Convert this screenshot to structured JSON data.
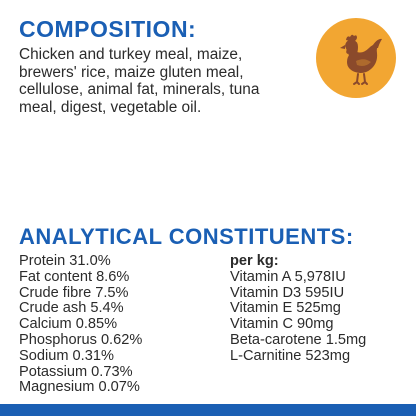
{
  "composition": {
    "title": "COMPOSITION:",
    "lines": [
      "Chicken and turkey meal, maize,",
      "brewers' rice, maize gluten meal,",
      "cellulose, animal fat, minerals, tuna",
      "meal, digest, vegetable oil."
    ]
  },
  "icon": {
    "name": "chicken-icon",
    "circle_color": "#f2a632",
    "bird_color": "#8b4a2b"
  },
  "analytical": {
    "title": "ANALYTICAL CONSTITUENTS:",
    "left": [
      "Protein 31.0%",
      "Fat content 8.6%",
      "Crude fibre 7.5%",
      "Crude ash 5.4%",
      "Calcium 0.85%",
      "Phosphorus 0.62%",
      "Sodium 0.31%",
      "Potassium 0.73%",
      "Magnesium 0.07%"
    ],
    "per_kg_label": "per kg:",
    "right": [
      "Vitamin A 5,978IU",
      "Vitamin D3 595IU",
      "Vitamin E 525mg",
      "Vitamin C 90mg",
      "Beta-carotene 1.5mg",
      "L-Carnitine 523mg"
    ]
  },
  "colors": {
    "heading": "#1a5fb4",
    "text": "#2b2b2b",
    "footer": "#1a5fb4"
  }
}
